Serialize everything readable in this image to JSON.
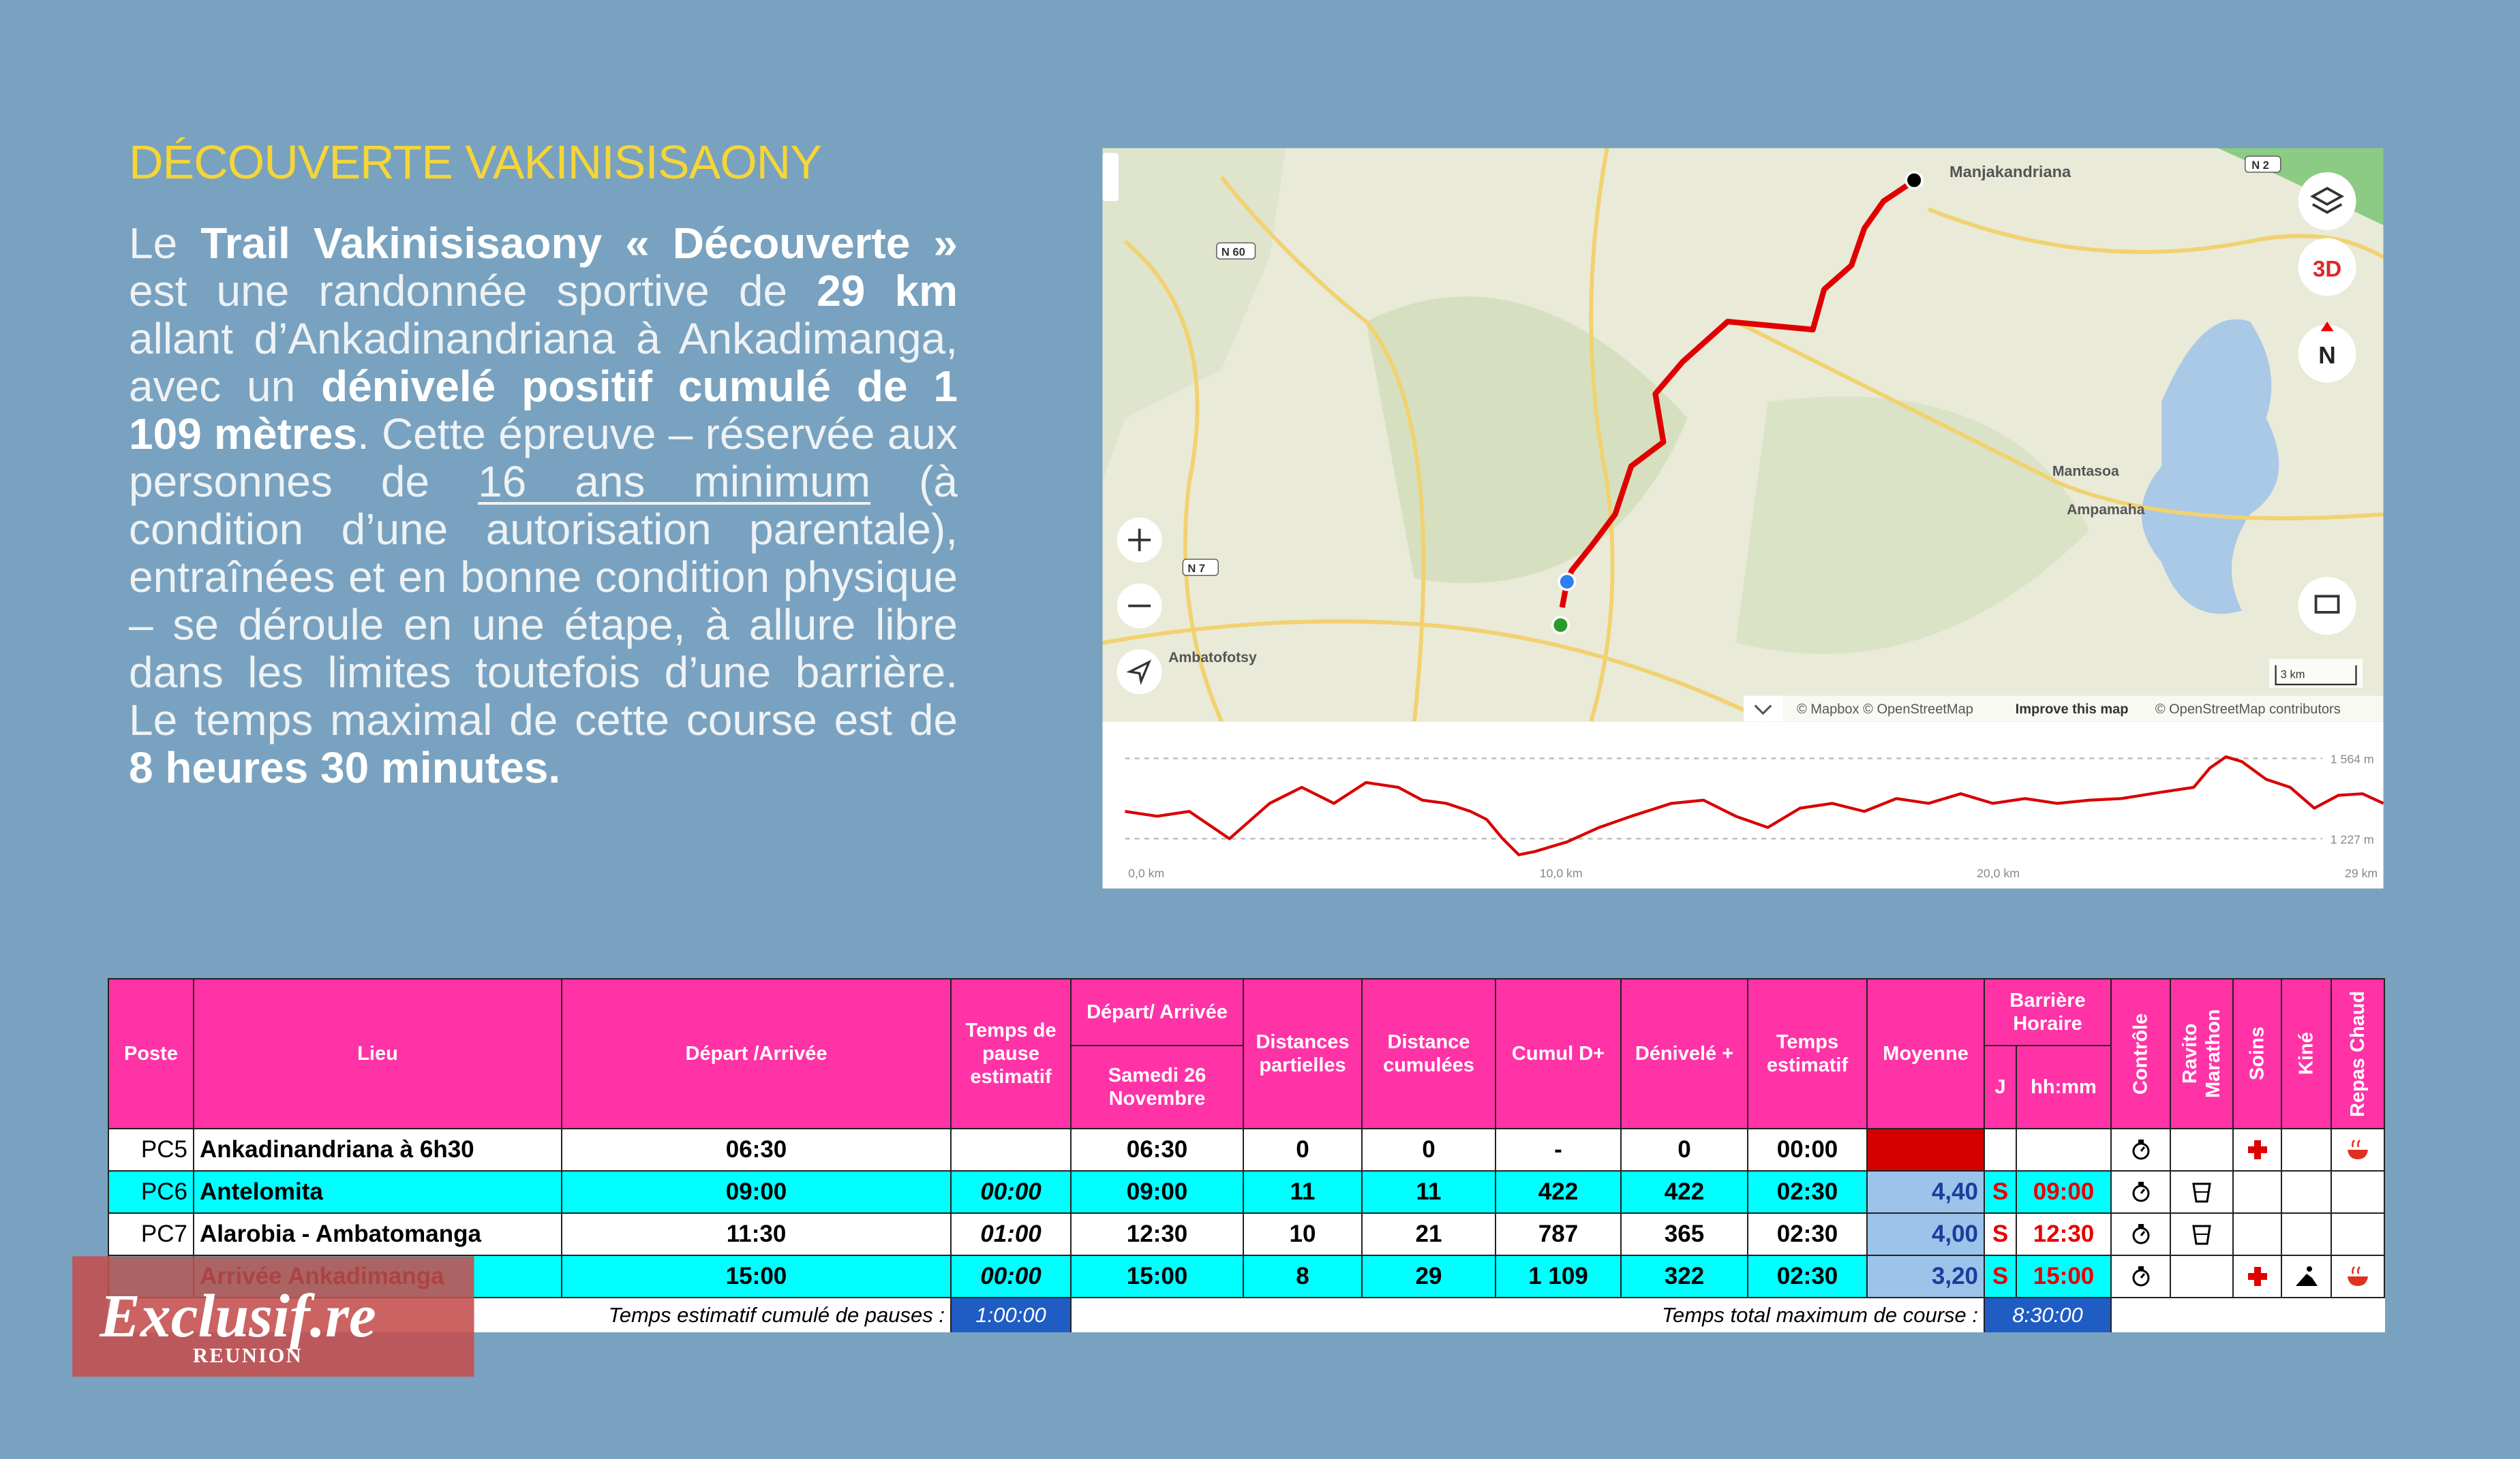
{
  "header": {
    "title": "DÉCOUVERTE VAKINISISAONY"
  },
  "intro": [
    {
      "text": "Le "
    },
    {
      "text": "Trail Vakinisisaony « Découverte »",
      "strong": true
    },
    {
      "text": " est une randonnée sportive de "
    },
    {
      "text": "29 km",
      "strong": true
    },
    {
      "text": " allant d’Ankadinandriana à Ankadimanga, avec un "
    },
    {
      "text": "dénivelé positif cumulé de 1 109 mètres",
      "strong": true
    },
    {
      "text": ". Cette épreuve – réservée aux personnes de "
    },
    {
      "text": "16 ans minimum",
      "underline": true
    },
    {
      "text": " (à condition d’une autorisation parentale), entraînées et en bonne condition physique – se déroule en une étape, à allure libre dans les limites toutefois d’une barrière. Le temps maximal de cette course est de "
    },
    {
      "text": "8 heures 30 minutes",
      "strong": true
    },
    {
      "text": ".",
      "strong": true
    }
  ],
  "map": {
    "places": [
      "Manjakandriana",
      "Mantasoa",
      "Ampamaha",
      "Ambatofotsy"
    ],
    "roads": [
      "N 2",
      "N 60",
      "N 7"
    ],
    "buttons": {
      "three_d": "3D",
      "north": "N"
    },
    "scale": "3 km",
    "attribution": "© Mapbox © OpenStreetMap",
    "improve": "Improve this map",
    "attribution2": "© OpenStreetMap contributors",
    "profile": {
      "elev_max": "1 564 m",
      "elev_min": "1 227 m",
      "km": [
        "0,0 km",
        "10,0 km",
        "20,0 km",
        "29 km"
      ]
    }
  },
  "table": {
    "headers": {
      "poste": "Poste",
      "lieu": "Lieu",
      "depart": "Départ /Arrivée",
      "pause": "Temps de pause estimatif",
      "heure_top": "Départ/ Arrivée",
      "heure_sub": "Samedi 26 Novembre",
      "dist": "Distances partielles",
      "cumul": "Distance cumulées",
      "dplus_cumul": "Cumul D+",
      "dplus": "Dénivelé +",
      "temps": "Temps estimatif",
      "moyenne": "Moyenne",
      "barriere_top": "Barrière Horaire",
      "j": "J",
      "barriere": "hh:mm",
      "controle": "Contrôle",
      "ravito": "Ravito Marathon",
      "soins": "Soins",
      "kine": "Kiné",
      "repas": "Repas Chaud"
    },
    "rows": [
      {
        "poste": "PC5",
        "lieu": "Ankadinandriana à 6h30",
        "depart": "06:30",
        "heure": "06:30",
        "dist": 0,
        "cumul": 0,
        "dplus_cumul": "-",
        "dplus": 0,
        "temps": "00:00"
      },
      {
        "poste": "PC6",
        "lieu": "Antelomita",
        "depart": "09:00",
        "pause": "00:00",
        "heure": "09:00",
        "dist": 11,
        "cumul": 11,
        "dplus_cumul": 422,
        "dplus": 422,
        "temps": "02:30",
        "moyenne": "4,40",
        "j": "S",
        "barriere": "09:00"
      },
      {
        "poste": "PC7",
        "lieu": "Alarobia - Ambatomanga",
        "depart": "11:30",
        "pause": "01:00",
        "heure": "12:30",
        "dist": 10,
        "cumul": 21,
        "dplus_cumul": 787,
        "dplus": 365,
        "temps": "02:30",
        "moyenne": "4,00",
        "j": "S",
        "barriere": "12:30"
      },
      {
        "lieu": "Arrivée Ankadimanga",
        "depart": "15:00",
        "pause": "00:00",
        "heure": "15:00",
        "dist": 8,
        "cumul": 29,
        "dplus_cumul": "1 109",
        "dplus": 322,
        "temps": "02:30",
        "moyenne": "3,20",
        "j": "S",
        "barriere": "15:00"
      }
    ],
    "footer": {
      "pauses_label": "Temps estimatif cumulé de pauses :",
      "pauses": "1:00:00",
      "total_label": "Temps total maximum de course :",
      "total": "8:30:00"
    }
  },
  "logo": {
    "name": "Exclusif.re",
    "region": "REUNION"
  }
}
